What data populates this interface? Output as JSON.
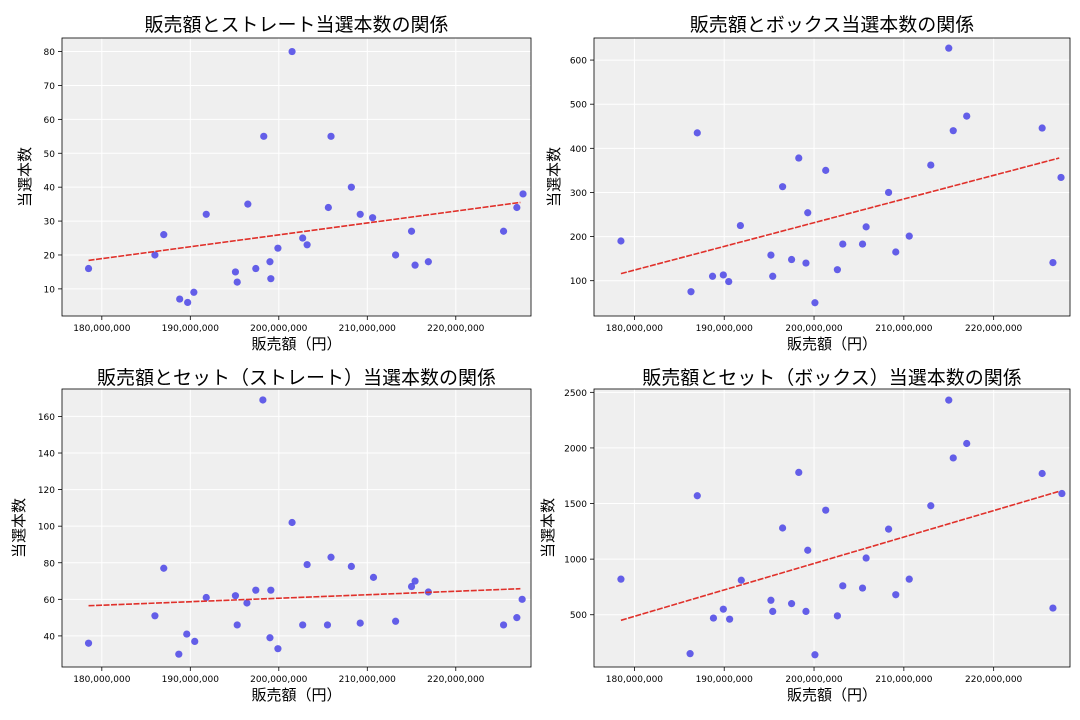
{
  "colors": {
    "point": "#4a44e6",
    "trend": "#e0302a",
    "plot_bg": "#efefef",
    "grid": "#ffffff"
  },
  "chart_data": [
    {
      "type": "scatter",
      "title": "販売額とストレート当選本数の関係",
      "xlabel": "販売額（円）",
      "ylabel": "当選本数",
      "xlim": [
        175500000,
        228500000
      ],
      "ylim": [
        2,
        84
      ],
      "xticks": [
        180000000,
        190000000,
        200000000,
        210000000,
        220000000
      ],
      "xtick_labels": [
        "180,000,000",
        "190,000,000",
        "200,000,000",
        "210,000,000",
        "220,000,000"
      ],
      "yticks": [
        10,
        20,
        30,
        40,
        50,
        60,
        70,
        80
      ],
      "ytick_labels": [
        "10",
        "20",
        "30",
        "40",
        "50",
        "60",
        "70",
        "80"
      ],
      "grid": true,
      "trendline": {
        "x": [
          178500000,
          227300000
        ],
        "y": [
          18.4,
          35.5
        ]
      },
      "points": [
        {
          "x": 178500000,
          "y": 16
        },
        {
          "x": 186000000,
          "y": 20
        },
        {
          "x": 187000000,
          "y": 26
        },
        {
          "x": 188800000,
          "y": 7
        },
        {
          "x": 189700000,
          "y": 6
        },
        {
          "x": 190400000,
          "y": 9
        },
        {
          "x": 191800000,
          "y": 32
        },
        {
          "x": 195100000,
          "y": 15
        },
        {
          "x": 195300000,
          "y": 12
        },
        {
          "x": 196500000,
          "y": 35
        },
        {
          "x": 197400000,
          "y": 16
        },
        {
          "x": 198300000,
          "y": 55
        },
        {
          "x": 199100000,
          "y": 13
        },
        {
          "x": 199000000,
          "y": 18
        },
        {
          "x": 199900000,
          "y": 22
        },
        {
          "x": 201500000,
          "y": 80
        },
        {
          "x": 202700000,
          "y": 25
        },
        {
          "x": 203200000,
          "y": 23
        },
        {
          "x": 205600000,
          "y": 34
        },
        {
          "x": 205900000,
          "y": 55
        },
        {
          "x": 208200000,
          "y": 40
        },
        {
          "x": 209200000,
          "y": 32
        },
        {
          "x": 210600000,
          "y": 31
        },
        {
          "x": 213200000,
          "y": 20
        },
        {
          "x": 215000000,
          "y": 27
        },
        {
          "x": 215400000,
          "y": 17
        },
        {
          "x": 216900000,
          "y": 18
        },
        {
          "x": 225400000,
          "y": 27
        },
        {
          "x": 226900000,
          "y": 34
        },
        {
          "x": 227600000,
          "y": 38
        }
      ]
    },
    {
      "type": "scatter",
      "title": "販売額とボックス当選本数の関係",
      "xlabel": "販売額（円）",
      "ylabel": "当選本数",
      "xlim": [
        175500000,
        228500000
      ],
      "ylim": [
        20,
        650
      ],
      "xticks": [
        180000000,
        190000000,
        200000000,
        210000000,
        220000000
      ],
      "xtick_labels": [
        "180,000,000",
        "190,000,000",
        "200,000,000",
        "210,000,000",
        "220,000,000"
      ],
      "yticks": [
        100,
        200,
        300,
        400,
        500,
        600
      ],
      "ytick_labels": [
        "100",
        "200",
        "300",
        "400",
        "500",
        "600"
      ],
      "grid": true,
      "trendline": {
        "x": [
          178500000,
          227300000
        ],
        "y": [
          116,
          378
        ]
      },
      "points": [
        {
          "x": 178500000,
          "y": 190
        },
        {
          "x": 186300000,
          "y": 75
        },
        {
          "x": 187000000,
          "y": 435
        },
        {
          "x": 188700000,
          "y": 110
        },
        {
          "x": 189900000,
          "y": 113
        },
        {
          "x": 190500000,
          "y": 98
        },
        {
          "x": 191800000,
          "y": 225
        },
        {
          "x": 195200000,
          "y": 158
        },
        {
          "x": 195400000,
          "y": 110
        },
        {
          "x": 196500000,
          "y": 313
        },
        {
          "x": 197500000,
          "y": 148
        },
        {
          "x": 198300000,
          "y": 378
        },
        {
          "x": 199100000,
          "y": 140
        },
        {
          "x": 199300000,
          "y": 254
        },
        {
          "x": 200100000,
          "y": 50
        },
        {
          "x": 201300000,
          "y": 350
        },
        {
          "x": 202600000,
          "y": 125
        },
        {
          "x": 203200000,
          "y": 183
        },
        {
          "x": 205400000,
          "y": 183
        },
        {
          "x": 205800000,
          "y": 222
        },
        {
          "x": 208300000,
          "y": 300
        },
        {
          "x": 209100000,
          "y": 165
        },
        {
          "x": 210600000,
          "y": 201
        },
        {
          "x": 213000000,
          "y": 362
        },
        {
          "x": 215000000,
          "y": 627
        },
        {
          "x": 215500000,
          "y": 440
        },
        {
          "x": 217000000,
          "y": 473
        },
        {
          "x": 225400000,
          "y": 446
        },
        {
          "x": 226600000,
          "y": 141
        },
        {
          "x": 227500000,
          "y": 334
        }
      ]
    },
    {
      "type": "scatter",
      "title": "販売額とセット（ストレート）当選本数の関係",
      "xlabel": "販売額（円）",
      "ylabel": "当選本数",
      "xlim": [
        175500000,
        228500000
      ],
      "ylim": [
        23,
        175
      ],
      "xticks": [
        180000000,
        190000000,
        200000000,
        210000000,
        220000000
      ],
      "xtick_labels": [
        "180,000,000",
        "190,000,000",
        "200,000,000",
        "210,000,000",
        "220,000,000"
      ],
      "yticks": [
        40,
        60,
        80,
        100,
        120,
        140,
        160
      ],
      "ytick_labels": [
        "40",
        "60",
        "80",
        "100",
        "120",
        "140",
        "160"
      ],
      "grid": true,
      "trendline": {
        "x": [
          178500000,
          227300000
        ],
        "y": [
          56.5,
          65.8
        ]
      },
      "points": [
        {
          "x": 178500000,
          "y": 36
        },
        {
          "x": 186000000,
          "y": 51
        },
        {
          "x": 187000000,
          "y": 77
        },
        {
          "x": 188700000,
          "y": 30
        },
        {
          "x": 189600000,
          "y": 41
        },
        {
          "x": 190500000,
          "y": 37
        },
        {
          "x": 191800000,
          "y": 61
        },
        {
          "x": 195100000,
          "y": 62
        },
        {
          "x": 195300000,
          "y": 46
        },
        {
          "x": 196400000,
          "y": 58
        },
        {
          "x": 197400000,
          "y": 65
        },
        {
          "x": 198200000,
          "y": 169
        },
        {
          "x": 199100000,
          "y": 65
        },
        {
          "x": 199000000,
          "y": 39
        },
        {
          "x": 199900000,
          "y": 33
        },
        {
          "x": 201500000,
          "y": 102
        },
        {
          "x": 202700000,
          "y": 46
        },
        {
          "x": 203200000,
          "y": 79
        },
        {
          "x": 205500000,
          "y": 46
        },
        {
          "x": 205900000,
          "y": 83
        },
        {
          "x": 208200000,
          "y": 78
        },
        {
          "x": 209200000,
          "y": 47
        },
        {
          "x": 210700000,
          "y": 72
        },
        {
          "x": 213200000,
          "y": 48
        },
        {
          "x": 215000000,
          "y": 67
        },
        {
          "x": 215400000,
          "y": 70
        },
        {
          "x": 216900000,
          "y": 64
        },
        {
          "x": 225400000,
          "y": 46
        },
        {
          "x": 226900000,
          "y": 50
        },
        {
          "x": 227500000,
          "y": 60
        }
      ]
    },
    {
      "type": "scatter",
      "title": "販売額とセット（ボックス）当選本数の関係",
      "xlabel": "販売額（円）",
      "ylabel": "当選本数",
      "xlim": [
        175500000,
        228500000
      ],
      "ylim": [
        30,
        2530
      ],
      "xticks": [
        180000000,
        190000000,
        200000000,
        210000000,
        220000000
      ],
      "xtick_labels": [
        "180,000,000",
        "190,000,000",
        "200,000,000",
        "210,000,000",
        "220,000,000"
      ],
      "yticks": [
        500,
        1000,
        1500,
        2000,
        2500
      ],
      "ytick_labels": [
        "500",
        "1000",
        "1500",
        "2000",
        "2500"
      ],
      "grid": true,
      "trendline": {
        "x": [
          178500000,
          227300000
        ],
        "y": [
          450,
          1610
        ]
      },
      "points": [
        {
          "x": 178500000,
          "y": 820
        },
        {
          "x": 186200000,
          "y": 150
        },
        {
          "x": 187000000,
          "y": 1570
        },
        {
          "x": 188800000,
          "y": 470
        },
        {
          "x": 189900000,
          "y": 550
        },
        {
          "x": 190600000,
          "y": 460
        },
        {
          "x": 191900000,
          "y": 810
        },
        {
          "x": 195200000,
          "y": 630
        },
        {
          "x": 195400000,
          "y": 530
        },
        {
          "x": 196500000,
          "y": 1280
        },
        {
          "x": 197500000,
          "y": 600
        },
        {
          "x": 198300000,
          "y": 1780
        },
        {
          "x": 199100000,
          "y": 530
        },
        {
          "x": 199300000,
          "y": 1080
        },
        {
          "x": 200100000,
          "y": 140
        },
        {
          "x": 201300000,
          "y": 1440
        },
        {
          "x": 202600000,
          "y": 490
        },
        {
          "x": 203200000,
          "y": 760
        },
        {
          "x": 205400000,
          "y": 740
        },
        {
          "x": 205800000,
          "y": 1010
        },
        {
          "x": 208300000,
          "y": 1270
        },
        {
          "x": 209100000,
          "y": 680
        },
        {
          "x": 210600000,
          "y": 820
        },
        {
          "x": 213000000,
          "y": 1480
        },
        {
          "x": 215000000,
          "y": 2430
        },
        {
          "x": 215500000,
          "y": 1910
        },
        {
          "x": 217000000,
          "y": 2040
        },
        {
          "x": 225400000,
          "y": 1770
        },
        {
          "x": 226600000,
          "y": 560
        },
        {
          "x": 227600000,
          "y": 1590
        }
      ]
    }
  ]
}
